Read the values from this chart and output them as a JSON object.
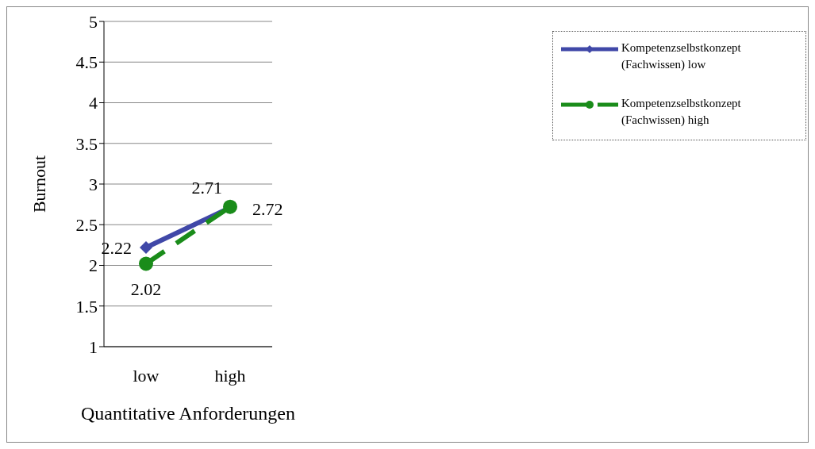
{
  "chart_data": {
    "type": "line",
    "xlabel": "Quantitative Anforderungen",
    "ylabel": "Burnout",
    "categories": [
      "low",
      "high"
    ],
    "series": [
      {
        "name": "Kompetenzselbstkonzept (Fachwissen) low",
        "color": "#4048a8",
        "values": [
          2.22,
          2.71
        ],
        "marker": "diamond",
        "line_style": "solid"
      },
      {
        "name": "Kompetenzselbstkonzept (Fachwissen) high",
        "color": "#1a8c1a",
        "values": [
          2.02,
          2.72
        ],
        "marker": "circle",
        "line_style": "dashed"
      }
    ],
    "ylim": [
      1,
      5
    ],
    "yticks": [
      1,
      1.5,
      2,
      2.5,
      3,
      3.5,
      4,
      4.5,
      5
    ],
    "grid": "y",
    "legend": "top right",
    "data_labels": true
  }
}
